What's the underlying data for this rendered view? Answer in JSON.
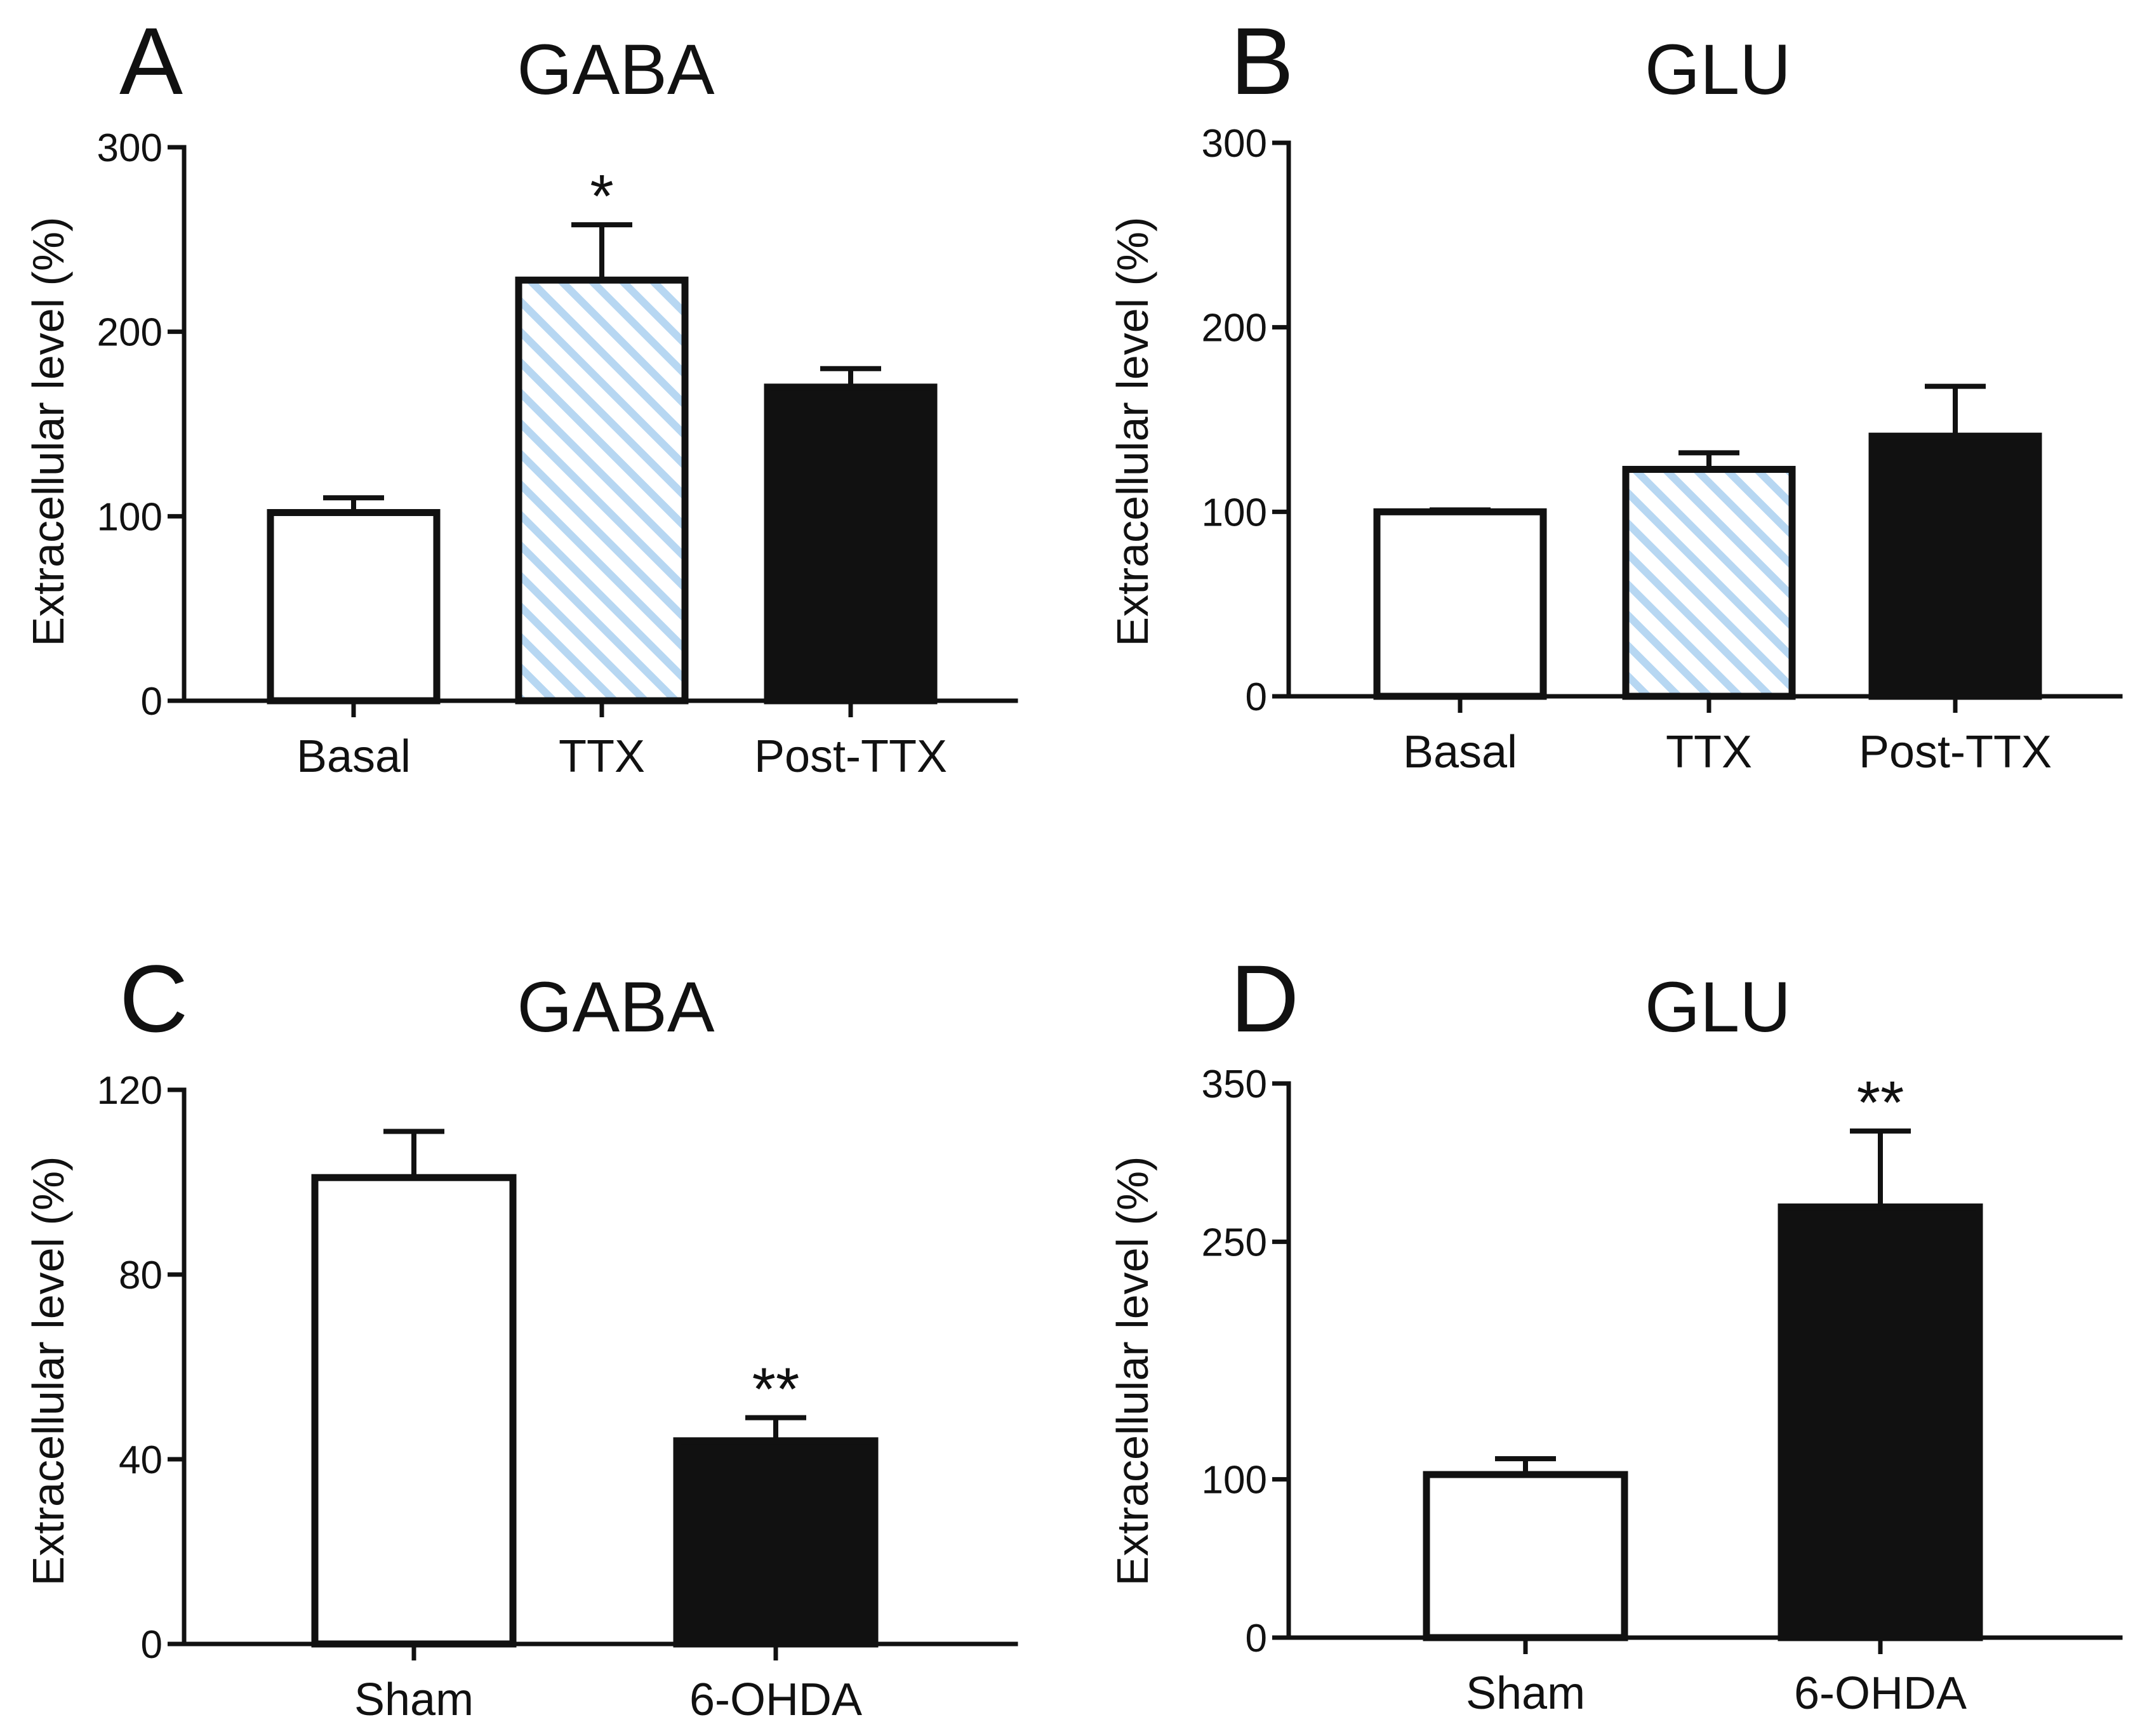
{
  "colors": {
    "axis": "#111111",
    "open_fill": "#ffffff",
    "solid_fill": "#111111",
    "hatch_stripe": "#b7d7f2",
    "hatch_bg": "#ffffff"
  },
  "chart_data": [
    {
      "panel": "A",
      "type": "bar",
      "title": "GABA",
      "xlabel": "",
      "ylabel": "Extracellular level (%)",
      "ylim": [
        0,
        300
      ],
      "yticks": [
        0,
        100,
        200,
        300
      ],
      "grid": false,
      "categories": [
        "Basal",
        "TTX",
        "Post-TTX"
      ],
      "values": [
        102,
        228,
        170
      ],
      "errors": [
        8,
        30,
        10
      ],
      "fills": [
        "open",
        "hatch",
        "solid"
      ],
      "significance": [
        "",
        "*",
        ""
      ]
    },
    {
      "panel": "B",
      "type": "bar",
      "title": "GLU",
      "xlabel": "",
      "ylabel": "Extracellular level (%)",
      "ylim": [
        0,
        300
      ],
      "yticks": [
        0,
        100,
        200,
        300
      ],
      "grid": false,
      "categories": [
        "Basal",
        "TTX",
        "Post-TTX"
      ],
      "values": [
        100,
        123,
        141
      ],
      "errors": [
        1,
        9,
        27
      ],
      "fills": [
        "open",
        "hatch",
        "solid"
      ],
      "significance": [
        "",
        "",
        ""
      ]
    },
    {
      "panel": "C",
      "type": "bar",
      "title": "GABA",
      "xlabel": "",
      "ylabel": "Extracellular level (%)",
      "ylim": [
        0,
        120
      ],
      "yticks": [
        0,
        40,
        80,
        120
      ],
      "grid": false,
      "categories": [
        "Sham",
        "6-OHDA"
      ],
      "values": [
        101,
        44
      ],
      "errors": [
        10,
        5
      ],
      "fills": [
        "open",
        "solid"
      ],
      "significance": [
        "",
        "**"
      ]
    },
    {
      "panel": "D",
      "type": "bar",
      "title": "GLU",
      "xlabel": "",
      "ylabel": "Extracellular level (%)",
      "ylim": [
        0,
        350
      ],
      "yticks": [
        0,
        100,
        250,
        350
      ],
      "grid": false,
      "categories": [
        "Sham",
        "6-OHDA"
      ],
      "values": [
        103,
        272
      ],
      "errors": [
        10,
        48
      ],
      "fills": [
        "open",
        "solid"
      ],
      "significance": [
        "",
        "**"
      ]
    }
  ]
}
